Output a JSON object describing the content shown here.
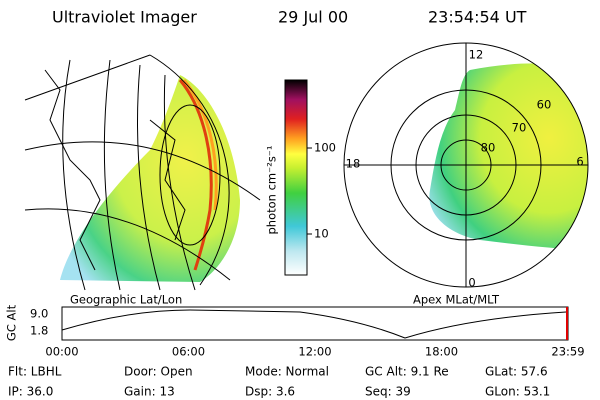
{
  "header": {
    "instrument": "Ultraviolet Imager",
    "date": "29 Jul 00",
    "time": "23:54:54 UT"
  },
  "left_panel": {
    "label": "Geographic Lat/Lon"
  },
  "colorbar": {
    "unit": "photon cm⁻²s⁻¹",
    "ticks": [
      "100",
      "10"
    ]
  },
  "right_panel": {
    "label": "Apex MLat/MLT",
    "mlt_labels": [
      "12",
      "18",
      "6",
      "0"
    ],
    "lat_labels": [
      "60",
      "70",
      "80"
    ]
  },
  "altitude_plot": {
    "label": "GC Alt",
    "y_labels": [
      "9.0",
      "1.8"
    ],
    "time_labels": [
      "00:00",
      "06:00",
      "12:00",
      "18:00",
      "23:59"
    ]
  },
  "info": {
    "rows": [
      [
        "Flt: LBHL",
        "Door: Open",
        "Mode: Normal",
        "GC Alt: 9.1 Re",
        "GLat: 57.6"
      ],
      [
        "IP: 36.0",
        "Gain: 13",
        "Dsp: 3.6",
        "Seq: 39",
        "GLon: 53.1"
      ]
    ]
  }
}
